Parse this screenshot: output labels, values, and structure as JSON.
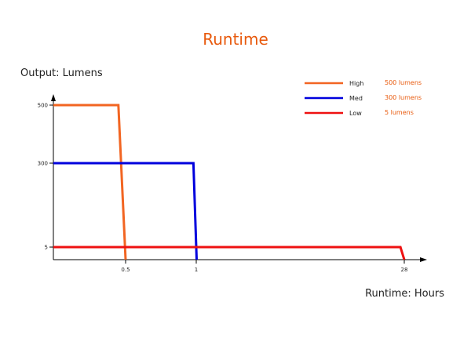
{
  "chart_data": {
    "type": "line",
    "title": "Runtime",
    "ylabel": "Output: Lumens",
    "xlabel": "Runtime: Hours",
    "x_ticks": [
      "0.5",
      "1",
      "28"
    ],
    "y_ticks": [
      "500",
      "300",
      "5"
    ],
    "x_scale": "categorical-breakpoints",
    "y_scale": "non-linear",
    "grid": false,
    "legend_position": "top-right",
    "series": [
      {
        "name": "High",
        "legend_value": "500 lumens",
        "color": "#f26522",
        "points": [
          {
            "x": 0,
            "y": 500
          },
          {
            "x": 0.45,
            "y": 500
          },
          {
            "x": 0.5,
            "y": 0
          }
        ]
      },
      {
        "name": "Med",
        "legend_value": "300 lumens",
        "color": "#0000dd",
        "points": [
          {
            "x": 0,
            "y": 300
          },
          {
            "x": 0.98,
            "y": 300
          },
          {
            "x": 1.05,
            "y": 0
          }
        ]
      },
      {
        "name": "Low",
        "legend_value": "5 lumens",
        "color": "#ee1111",
        "points": [
          {
            "x": 0,
            "y": 5
          },
          {
            "x": 27.5,
            "y": 5
          },
          {
            "x": 28,
            "y": 0
          }
        ]
      }
    ]
  }
}
